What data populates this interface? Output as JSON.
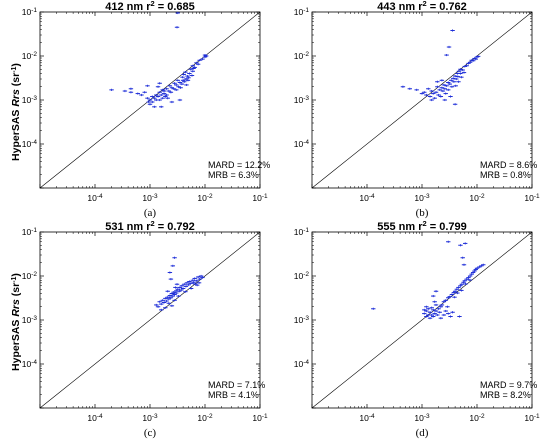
{
  "y_axis_label": {
    "prefix": "HyperSAS ",
    "italic": "Rrs",
    "unit_open": " (sr",
    "unit_sup": "-1",
    "unit_close": ")"
  },
  "colors": {
    "points": "#1f2fd8",
    "axes": "#000000",
    "one_to_one": "#000000"
  },
  "chart_data": [
    {
      "type": "scatter",
      "title_prefix": "412 nm r",
      "title_sup": "2",
      "title_suffix": " = 0.685",
      "stats": [
        "MARD = 12.2%",
        "MRB = 6.3%"
      ],
      "sub_label": "(a)",
      "x_scale": "log",
      "y_scale": "log",
      "xlim": [
        1e-05,
        0.1
      ],
      "ylim": [
        1e-05,
        0.1
      ],
      "x_ticks": [
        {
          "base": "10",
          "exp": "-4"
        },
        {
          "base": "10",
          "exp": "-3"
        },
        {
          "base": "10",
          "exp": "-2"
        },
        {
          "base": "10",
          "exp": "-1"
        }
      ],
      "y_ticks": [
        {
          "base": "10",
          "exp": "-4"
        },
        {
          "base": "10",
          "exp": "-3"
        },
        {
          "base": "10",
          "exp": "-2"
        },
        {
          "base": "10",
          "exp": "-1"
        }
      ],
      "one_to_one_line": true,
      "points": [
        [
          0.00035,
          0.0016
        ],
        [
          0.00045,
          0.0015
        ],
        [
          0.0006,
          0.0014
        ],
        [
          0.0007,
          0.0013
        ],
        [
          0.0008,
          0.0015
        ],
        [
          0.0009,
          0.0011
        ],
        [
          0.00095,
          0.0009
        ],
        [
          0.001,
          0.001
        ],
        [
          0.001,
          0.0008
        ],
        [
          0.0011,
          0.0012
        ],
        [
          0.0011,
          0.0009
        ],
        [
          0.0012,
          0.0011
        ],
        [
          0.0012,
          0.0007
        ],
        [
          0.0013,
          0.001
        ],
        [
          0.0013,
          0.0013
        ],
        [
          0.0014,
          0.0012
        ],
        [
          0.0015,
          0.001
        ],
        [
          0.0015,
          0.0015
        ],
        [
          0.0016,
          0.0013
        ],
        [
          0.0017,
          0.0011
        ],
        [
          0.0018,
          0.0014
        ],
        [
          0.0018,
          0.0016
        ],
        [
          0.002,
          0.0013
        ],
        [
          0.002,
          0.0018
        ],
        [
          0.0022,
          0.0016
        ],
        [
          0.0024,
          0.0015
        ],
        [
          0.0025,
          0.0019
        ],
        [
          0.0027,
          0.0018
        ],
        [
          0.003,
          0.0017
        ],
        [
          0.003,
          0.0022
        ],
        [
          0.0033,
          0.002
        ],
        [
          0.0035,
          0.0025
        ],
        [
          0.0038,
          0.0023
        ],
        [
          0.004,
          0.0028
        ],
        [
          0.0042,
          0.0026
        ],
        [
          0.0045,
          0.003
        ],
        [
          0.0048,
          0.0035
        ],
        [
          0.005,
          0.0032
        ],
        [
          0.0052,
          0.004
        ],
        [
          0.0055,
          0.005
        ],
        [
          0.006,
          0.0045
        ],
        [
          0.006,
          0.006
        ],
        [
          0.0065,
          0.0055
        ],
        [
          0.007,
          0.007
        ],
        [
          0.0075,
          0.0065
        ],
        [
          0.008,
          0.008
        ],
        [
          0.009,
          0.0085
        ],
        [
          0.01,
          0.0095
        ],
        [
          0.01,
          0.0105
        ],
        [
          0.0105,
          0.01
        ],
        [
          0.00045,
          0.0018
        ],
        [
          0.0009,
          0.0021
        ],
        [
          0.0014,
          0.002
        ],
        [
          0.0015,
          0.0024
        ],
        [
          0.0016,
          0.0007
        ],
        [
          0.0017,
          0.0017
        ],
        [
          0.0019,
          0.0012
        ],
        [
          0.0021,
          0.0011
        ],
        [
          0.0023,
          0.0021
        ],
        [
          0.0025,
          0.0009
        ],
        [
          0.0028,
          0.0024
        ],
        [
          0.0032,
          0.0028
        ],
        [
          0.0036,
          0.0019
        ],
        [
          0.0039,
          0.0033
        ],
        [
          0.0041,
          0.0038
        ],
        [
          0.0044,
          0.0043
        ],
        [
          0.0046,
          0.0022
        ],
        [
          0.0049,
          0.0028
        ],
        [
          0.0058,
          0.0036
        ],
        [
          0.0062,
          0.0052
        ],
        [
          0.0035,
          0.001
        ],
        [
          0.0002,
          0.0017
        ],
        [
          0.0032,
          0.095
        ],
        [
          0.0031,
          0.045
        ]
      ]
    },
    {
      "type": "scatter",
      "title_prefix": "443 nm r",
      "title_sup": "2",
      "title_suffix": " = 0.762",
      "stats": [
        "MARD = 8.6%",
        "MRB = 0.8%"
      ],
      "sub_label": "(b)",
      "x_scale": "log",
      "y_scale": "log",
      "xlim": [
        1e-05,
        0.1
      ],
      "ylim": [
        1e-05,
        0.1
      ],
      "x_ticks": [
        {
          "base": "10",
          "exp": "-4"
        },
        {
          "base": "10",
          "exp": "-3"
        },
        {
          "base": "10",
          "exp": "-2"
        },
        {
          "base": "10",
          "exp": "-1"
        }
      ],
      "y_ticks": [
        {
          "base": "10",
          "exp": "-4"
        },
        {
          "base": "10",
          "exp": "-3"
        },
        {
          "base": "10",
          "exp": "-2"
        },
        {
          "base": "10",
          "exp": "-1"
        }
      ],
      "one_to_one_line": true,
      "points": [
        [
          0.00045,
          0.002
        ],
        [
          0.0006,
          0.0018
        ],
        [
          0.0008,
          0.0017
        ],
        [
          0.001,
          0.0014
        ],
        [
          0.0011,
          0.0015
        ],
        [
          0.0012,
          0.0013
        ],
        [
          0.0013,
          0.0018
        ],
        [
          0.0014,
          0.0012
        ],
        [
          0.0015,
          0.0016
        ],
        [
          0.0016,
          0.0014
        ],
        [
          0.0017,
          0.0011
        ],
        [
          0.0018,
          0.0015
        ],
        [
          0.0019,
          0.002
        ],
        [
          0.002,
          0.0013
        ],
        [
          0.0021,
          0.0017
        ],
        [
          0.0022,
          0.0012
        ],
        [
          0.0023,
          0.0019
        ],
        [
          0.0024,
          0.0016
        ],
        [
          0.0025,
          0.0022
        ],
        [
          0.0026,
          0.0018
        ],
        [
          0.0027,
          0.0014
        ],
        [
          0.0028,
          0.0021
        ],
        [
          0.003,
          0.0025
        ],
        [
          0.003,
          0.0017
        ],
        [
          0.0032,
          0.0023
        ],
        [
          0.0034,
          0.0028
        ],
        [
          0.0035,
          0.002
        ],
        [
          0.0037,
          0.0031
        ],
        [
          0.0038,
          0.0026
        ],
        [
          0.004,
          0.0035
        ],
        [
          0.0042,
          0.003
        ],
        [
          0.0044,
          0.004
        ],
        [
          0.0045,
          0.0034
        ],
        [
          0.0047,
          0.0045
        ],
        [
          0.005,
          0.004
        ],
        [
          0.005,
          0.005
        ],
        [
          0.0055,
          0.0048
        ],
        [
          0.006,
          0.0058
        ],
        [
          0.0065,
          0.006
        ],
        [
          0.007,
          0.0068
        ],
        [
          0.0075,
          0.0072
        ],
        [
          0.008,
          0.008
        ],
        [
          0.0085,
          0.0078
        ],
        [
          0.009,
          0.0088
        ],
        [
          0.0095,
          0.0085
        ],
        [
          0.01,
          0.0095
        ],
        [
          0.0105,
          0.0098
        ],
        [
          0.0036,
          0.038
        ],
        [
          0.0031,
          0.016
        ],
        [
          0.0028,
          0.0105
        ],
        [
          0.0033,
          0.0012
        ],
        [
          0.004,
          0.0008
        ],
        [
          0.0015,
          0.001
        ],
        [
          0.0019,
          0.0026
        ],
        [
          0.0023,
          0.0028
        ],
        [
          0.0026,
          0.001
        ],
        [
          0.0041,
          0.0021
        ],
        [
          0.0046,
          0.0026
        ],
        [
          0.0052,
          0.0033
        ],
        [
          0.0058,
          0.0042
        ]
      ]
    },
    {
      "type": "scatter",
      "title_prefix": "531 nm r",
      "title_sup": "2",
      "title_suffix": " = 0.792",
      "stats": [
        "MARD = 7.1%",
        "MRB = 4.1%"
      ],
      "sub_label": "(c)",
      "x_scale": "log",
      "y_scale": "log",
      "xlim": [
        1e-05,
        0.1
      ],
      "ylim": [
        1e-05,
        0.1
      ],
      "x_ticks": [
        {
          "base": "10",
          "exp": "-4"
        },
        {
          "base": "10",
          "exp": "-3"
        },
        {
          "base": "10",
          "exp": "-2"
        },
        {
          "base": "10",
          "exp": "-1"
        }
      ],
      "y_ticks": [
        {
          "base": "10",
          "exp": "-4"
        },
        {
          "base": "10",
          "exp": "-3"
        },
        {
          "base": "10",
          "exp": "-2"
        },
        {
          "base": "10",
          "exp": "-1"
        }
      ],
      "one_to_one_line": true,
      "points": [
        [
          0.0013,
          0.0022
        ],
        [
          0.0014,
          0.002
        ],
        [
          0.0015,
          0.0026
        ],
        [
          0.0016,
          0.0023
        ],
        [
          0.0017,
          0.0028
        ],
        [
          0.0018,
          0.0025
        ],
        [
          0.0019,
          0.0031
        ],
        [
          0.002,
          0.0027
        ],
        [
          0.0021,
          0.0033
        ],
        [
          0.0022,
          0.003
        ],
        [
          0.0023,
          0.0036
        ],
        [
          0.0024,
          0.0032
        ],
        [
          0.0025,
          0.004
        ],
        [
          0.0026,
          0.0035
        ],
        [
          0.0027,
          0.0043
        ],
        [
          0.0028,
          0.0038
        ],
        [
          0.003,
          0.0046
        ],
        [
          0.003,
          0.0041
        ],
        [
          0.0032,
          0.005
        ],
        [
          0.0034,
          0.0045
        ],
        [
          0.0035,
          0.0055
        ],
        [
          0.0037,
          0.0048
        ],
        [
          0.0038,
          0.006
        ],
        [
          0.004,
          0.0052
        ],
        [
          0.0042,
          0.0065
        ],
        [
          0.0045,
          0.0058
        ],
        [
          0.0047,
          0.007
        ],
        [
          0.005,
          0.0063
        ],
        [
          0.0052,
          0.0075
        ],
        [
          0.0055,
          0.0068
        ],
        [
          0.006,
          0.008
        ],
        [
          0.0062,
          0.0072
        ],
        [
          0.0065,
          0.0088
        ],
        [
          0.007,
          0.0078
        ],
        [
          0.0075,
          0.0095
        ],
        [
          0.008,
          0.0085
        ],
        [
          0.0085,
          0.01
        ],
        [
          0.009,
          0.0092
        ],
        [
          0.0016,
          0.0017
        ],
        [
          0.0019,
          0.0019
        ],
        [
          0.0022,
          0.0024
        ],
        [
          0.0025,
          0.0021
        ],
        [
          0.0028,
          0.0028
        ],
        [
          0.0029,
          0.0055
        ],
        [
          0.0031,
          0.0065
        ],
        [
          0.0024,
          0.0085
        ],
        [
          0.0023,
          0.012
        ],
        [
          0.0028,
          0.026
        ],
        [
          0.0026,
          0.017
        ],
        [
          0.0021,
          0.0045
        ],
        [
          0.0033,
          0.0035
        ],
        [
          0.0044,
          0.0044
        ],
        [
          0.0056,
          0.0052
        ],
        [
          0.0066,
          0.0066
        ],
        [
          0.0072,
          0.0062
        ],
        [
          0.0078,
          0.007
        ]
      ]
    },
    {
      "type": "scatter",
      "title_prefix": "555 nm r",
      "title_sup": "2",
      "title_suffix": " = 0.799",
      "stats": [
        "MARD = 9.7%",
        "MRB = 8.2%"
      ],
      "sub_label": "(d)",
      "x_scale": "log",
      "y_scale": "log",
      "xlim": [
        1e-05,
        0.1
      ],
      "ylim": [
        1e-05,
        0.1
      ],
      "x_ticks": [
        {
          "base": "10",
          "exp": "-4"
        },
        {
          "base": "10",
          "exp": "-3"
        },
        {
          "base": "10",
          "exp": "-2"
        },
        {
          "base": "10",
          "exp": "-1"
        }
      ],
      "y_ticks": [
        {
          "base": "10",
          "exp": "-4"
        },
        {
          "base": "10",
          "exp": "-3"
        },
        {
          "base": "10",
          "exp": "-2"
        },
        {
          "base": "10",
          "exp": "-1"
        }
      ],
      "one_to_one_line": true,
      "points": [
        [
          0.00013,
          0.0018
        ],
        [
          0.0011,
          0.0014
        ],
        [
          0.0011,
          0.0017
        ],
        [
          0.0012,
          0.0012
        ],
        [
          0.0012,
          0.0016
        ],
        [
          0.0012,
          0.002
        ],
        [
          0.0013,
          0.0013
        ],
        [
          0.0013,
          0.0018
        ],
        [
          0.0014,
          0.0011
        ],
        [
          0.0014,
          0.0015
        ],
        [
          0.0015,
          0.0013
        ],
        [
          0.0015,
          0.0019
        ],
        [
          0.0016,
          0.0012
        ],
        [
          0.0016,
          0.0017
        ],
        [
          0.0017,
          0.0014
        ],
        [
          0.0018,
          0.0016
        ],
        [
          0.0019,
          0.0013
        ],
        [
          0.002,
          0.0018
        ],
        [
          0.0021,
          0.0015
        ],
        [
          0.0022,
          0.002
        ],
        [
          0.0023,
          0.0022
        ],
        [
          0.0025,
          0.0026
        ],
        [
          0.0027,
          0.0028
        ],
        [
          0.003,
          0.0032
        ],
        [
          0.0032,
          0.0034
        ],
        [
          0.0035,
          0.0038
        ],
        [
          0.0038,
          0.0042
        ],
        [
          0.004,
          0.0045
        ],
        [
          0.0043,
          0.005
        ],
        [
          0.0046,
          0.0055
        ],
        [
          0.005,
          0.006
        ],
        [
          0.0053,
          0.0065
        ],
        [
          0.0057,
          0.0072
        ],
        [
          0.006,
          0.0078
        ],
        [
          0.0065,
          0.0085
        ],
        [
          0.007,
          0.0092
        ],
        [
          0.0075,
          0.01
        ],
        [
          0.008,
          0.011
        ],
        [
          0.0085,
          0.012
        ],
        [
          0.009,
          0.013
        ],
        [
          0.0095,
          0.014
        ],
        [
          0.01,
          0.015
        ],
        [
          0.011,
          0.016
        ],
        [
          0.012,
          0.017
        ],
        [
          0.013,
          0.018
        ],
        [
          0.0025,
          0.0013
        ],
        [
          0.003,
          0.0014
        ],
        [
          0.0033,
          0.0012
        ],
        [
          0.0036,
          0.0015
        ],
        [
          0.0048,
          0.0012
        ],
        [
          0.0018,
          0.0022
        ],
        [
          0.0017,
          0.0026
        ],
        [
          0.0016,
          0.0035
        ],
        [
          0.0018,
          0.0045
        ],
        [
          0.0022,
          0.0011
        ],
        [
          0.0027,
          0.0016
        ],
        [
          0.0029,
          0.002
        ],
        [
          0.0039,
          0.0033
        ],
        [
          0.0044,
          0.0041
        ],
        [
          0.0052,
          0.0047
        ],
        [
          0.0062,
          0.0066
        ],
        [
          0.0074,
          0.0081
        ],
        [
          0.0055,
          0.026
        ],
        [
          0.0061,
          0.055
        ],
        [
          0.005,
          0.05
        ],
        [
          0.0058,
          0.018
        ],
        [
          0.003,
          0.06
        ]
      ]
    }
  ]
}
